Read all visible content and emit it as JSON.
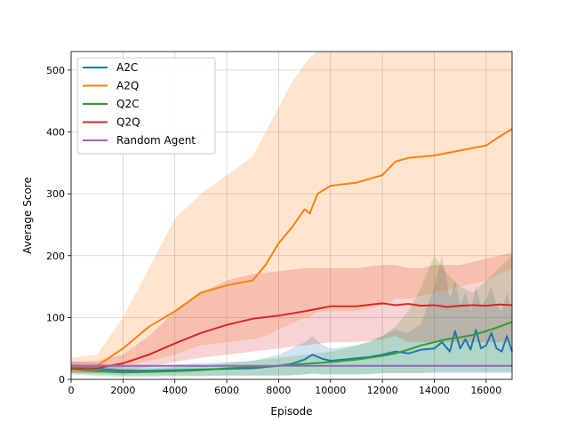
{
  "chart_data": {
    "type": "line",
    "title": "",
    "xlabel": "Episode",
    "ylabel": "Average Score",
    "xlim": [
      0,
      17000
    ],
    "ylim": [
      0,
      530
    ],
    "grid": true,
    "legend_position": "top-left",
    "x_ticks": [
      0,
      2000,
      4000,
      6000,
      8000,
      10000,
      12000,
      14000,
      16000
    ],
    "x_tick_labels": [
      "0",
      "2000",
      "4000",
      "6000",
      "8000",
      "10000",
      "12000",
      "14000",
      "16000"
    ],
    "y_ticks": [
      0,
      100,
      200,
      300,
      400,
      500
    ],
    "y_tick_labels": [
      "0",
      "100",
      "200",
      "300",
      "400",
      "500"
    ],
    "series": [
      {
        "name": "A2C",
        "color": "#1f77b4",
        "x": [
          0,
          1000,
          2000,
          3000,
          4000,
          5000,
          6000,
          7000,
          8000,
          8500,
          9000,
          9300,
          9700,
          10000,
          11000,
          11500,
          12000,
          12500,
          13000,
          13500,
          14000,
          14300,
          14600,
          14800,
          15000,
          15200,
          15400,
          15600,
          15800,
          16000,
          16200,
          16400,
          16600,
          16800,
          17000
        ],
        "values": [
          20,
          17,
          14,
          14,
          15,
          16,
          17,
          18,
          22,
          25,
          32,
          40,
          33,
          30,
          34,
          36,
          40,
          45,
          42,
          48,
          50,
          60,
          45,
          78,
          50,
          65,
          48,
          80,
          50,
          55,
          75,
          50,
          45,
          70,
          45
        ],
        "upper": [
          30,
          26,
          22,
          22,
          24,
          26,
          28,
          30,
          40,
          50,
          60,
          70,
          55,
          50,
          55,
          60,
          70,
          80,
          75,
          90,
          150,
          200,
          130,
          160,
          120,
          140,
          110,
          150,
          120,
          130,
          150,
          120,
          110,
          140,
          110
        ],
        "lower": [
          10,
          8,
          6,
          6,
          6,
          6,
          6,
          6,
          6,
          6,
          8,
          10,
          8,
          8,
          8,
          8,
          10,
          10,
          10,
          10,
          10,
          10,
          10,
          10,
          10,
          10,
          10,
          10,
          10,
          10,
          10,
          10,
          10,
          10,
          10
        ]
      },
      {
        "name": "A2Q",
        "color": "#ff7f0e",
        "x": [
          0,
          1000,
          2000,
          3000,
          4000,
          5000,
          6000,
          7000,
          7500,
          8000,
          8500,
          9000,
          9200,
          9500,
          10000,
          11000,
          12000,
          12500,
          13000,
          14000,
          15000,
          16000,
          16500,
          17000
        ],
        "values": [
          20,
          22,
          50,
          85,
          110,
          140,
          152,
          160,
          185,
          220,
          245,
          275,
          268,
          300,
          313,
          318,
          330,
          352,
          358,
          362,
          370,
          378,
          392,
          405
        ],
        "upper": [
          35,
          40,
          100,
          180,
          260,
          300,
          330,
          360,
          400,
          440,
          480,
          510,
          520,
          530,
          530,
          530,
          530,
          530,
          530,
          530,
          530,
          530,
          530,
          530
        ],
        "lower": [
          10,
          12,
          20,
          30,
          40,
          55,
          60,
          65,
          70,
          80,
          90,
          100,
          100,
          110,
          110,
          110,
          120,
          130,
          130,
          140,
          150,
          160,
          170,
          180
        ]
      },
      {
        "name": "Q2C",
        "color": "#2ca02c",
        "x": [
          0,
          1000,
          2000,
          3000,
          4000,
          5000,
          6000,
          7000,
          8000,
          9000,
          10000,
          11000,
          12000,
          12500,
          13000,
          13500,
          14000,
          14500,
          15000,
          15500,
          16000,
          16500,
          17000
        ],
        "values": [
          17,
          13,
          11,
          12,
          13,
          15,
          18,
          20,
          22,
          25,
          28,
          32,
          38,
          42,
          48,
          55,
          60,
          65,
          68,
          72,
          78,
          85,
          93
        ],
        "upper": [
          25,
          20,
          17,
          18,
          20,
          22,
          26,
          30,
          35,
          40,
          45,
          55,
          70,
          85,
          110,
          150,
          200,
          170,
          150,
          140,
          160,
          180,
          200
        ],
        "lower": [
          8,
          5,
          4,
          4,
          5,
          5,
          6,
          6,
          6,
          8,
          8,
          8,
          10,
          10,
          10,
          10,
          12,
          12,
          12,
          12,
          12,
          12,
          12
        ]
      },
      {
        "name": "Q2Q",
        "color": "#d62728",
        "x": [
          0,
          1000,
          2000,
          3000,
          4000,
          5000,
          6000,
          7000,
          8000,
          9000,
          10000,
          11000,
          12000,
          12500,
          13000,
          13500,
          14000,
          14500,
          15000,
          15500,
          16000,
          16500,
          17000
        ],
        "values": [
          18,
          18,
          26,
          40,
          58,
          75,
          88,
          98,
          103,
          110,
          118,
          118,
          123,
          120,
          122,
          119,
          120,
          117,
          119,
          120,
          119,
          121,
          120
        ],
        "upper": [
          28,
          30,
          40,
          70,
          110,
          140,
          160,
          170,
          175,
          180,
          180,
          180,
          185,
          185,
          180,
          180,
          185,
          185,
          185,
          190,
          195,
          200,
          205
        ],
        "lower": [
          10,
          10,
          14,
          20,
          28,
          35,
          40,
          45,
          50,
          55,
          60,
          60,
          65,
          70,
          60,
          60,
          60,
          60,
          60,
          60,
          60,
          60,
          60
        ]
      },
      {
        "name": "Random Agent",
        "color": "#9467bd",
        "x": [
          0,
          17000
        ],
        "values": [
          22,
          22
        ]
      }
    ]
  }
}
